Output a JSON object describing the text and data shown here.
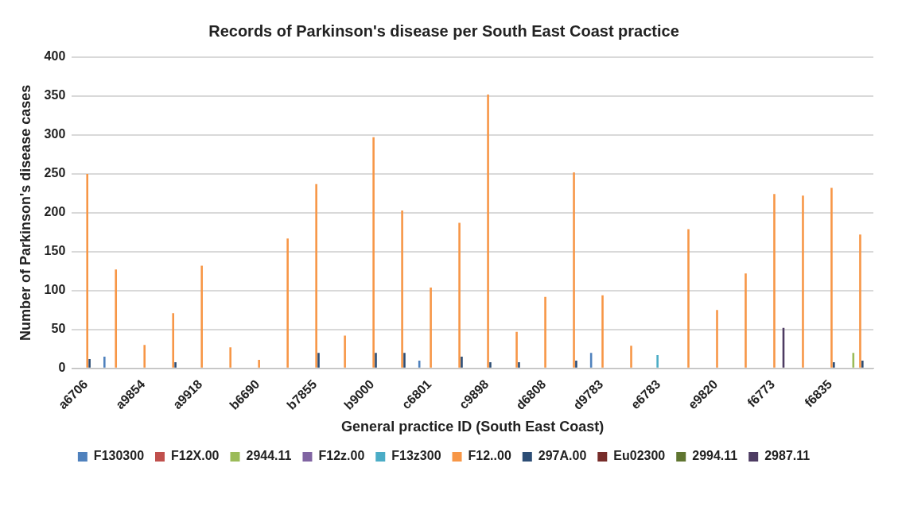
{
  "chart_data": {
    "type": "bar",
    "title": "Records of Parkinson's disease per South East Coast practice",
    "xlabel": "General practice ID (South East Coast)",
    "ylabel": "Number of Parkinson's disease cases",
    "categories": [
      "a6706",
      null,
      "a9854",
      null,
      "a9918",
      null,
      "b6690",
      null,
      "b7855",
      null,
      "b9000",
      null,
      "c6801",
      null,
      "c9898",
      null,
      "d6808",
      null,
      "d9783",
      null,
      "e6783",
      null,
      "e9820",
      null,
      "f6773",
      null,
      "f6835",
      null
    ],
    "series": [
      {
        "name": "F130300",
        "color": "#4f81bd",
        "values": [
          0,
          15,
          0,
          0,
          0,
          0,
          0,
          0,
          0,
          0,
          0,
          0,
          10,
          0,
          0,
          0,
          0,
          0,
          20,
          0,
          0,
          0,
          0,
          0,
          0,
          0,
          0,
          0
        ]
      },
      {
        "name": "F12X.00",
        "color": "#c0504d",
        "values": [
          0,
          0,
          0,
          0,
          0,
          0,
          0,
          0,
          0,
          0,
          0,
          0,
          0,
          0,
          0,
          0,
          0,
          0,
          0,
          0,
          0,
          0,
          0,
          0,
          0,
          0,
          0,
          0
        ]
      },
      {
        "name": "2944.11",
        "color": "#9bbb59",
        "values": [
          0,
          0,
          0,
          0,
          0,
          0,
          0,
          0,
          0,
          0,
          0,
          0,
          0,
          0,
          0,
          0,
          0,
          0,
          0,
          0,
          0,
          0,
          0,
          0,
          0,
          0,
          0,
          20
        ]
      },
      {
        "name": "F12z.00",
        "color": "#8064a2",
        "values": [
          0,
          0,
          0,
          0,
          0,
          0,
          0,
          0,
          0,
          0,
          0,
          0,
          0,
          0,
          0,
          0,
          0,
          0,
          0,
          0,
          0,
          0,
          0,
          0,
          0,
          0,
          0,
          0
        ]
      },
      {
        "name": "F13z300",
        "color": "#4bacc6",
        "values": [
          0,
          0,
          0,
          0,
          0,
          0,
          0,
          0,
          0,
          0,
          0,
          0,
          0,
          0,
          0,
          0,
          0,
          0,
          0,
          0,
          17,
          0,
          0,
          0,
          0,
          0,
          0,
          0
        ]
      },
      {
        "name": "F12..00",
        "color": "#f79646",
        "values": [
          250,
          127,
          30,
          71,
          132,
          27,
          11,
          167,
          237,
          42,
          297,
          203,
          104,
          187,
          352,
          47,
          92,
          252,
          94,
          29,
          0,
          179,
          75,
          122,
          224,
          222,
          232,
          172
        ]
      },
      {
        "name": "297A.00",
        "color": "#2c4d75",
        "values": [
          12,
          0,
          0,
          8,
          0,
          0,
          0,
          0,
          20,
          0,
          20,
          20,
          0,
          15,
          8,
          8,
          0,
          10,
          0,
          0,
          0,
          0,
          0,
          0,
          0,
          0,
          8,
          10
        ]
      },
      {
        "name": "Eu02300",
        "color": "#772c2a",
        "values": [
          0,
          0,
          0,
          0,
          0,
          0,
          0,
          0,
          0,
          0,
          0,
          0,
          0,
          0,
          0,
          0,
          0,
          0,
          0,
          0,
          0,
          0,
          0,
          0,
          0,
          0,
          0,
          0
        ]
      },
      {
        "name": "2994.11",
        "color": "#5f7530",
        "values": [
          0,
          0,
          0,
          0,
          0,
          0,
          0,
          0,
          0,
          0,
          0,
          0,
          0,
          0,
          0,
          0,
          0,
          0,
          0,
          0,
          0,
          0,
          0,
          0,
          0,
          0,
          0,
          0
        ]
      },
      {
        "name": "2987.11",
        "color": "#4d3b62",
        "values": [
          0,
          0,
          0,
          0,
          0,
          0,
          0,
          0,
          0,
          0,
          0,
          0,
          0,
          0,
          0,
          0,
          0,
          0,
          0,
          0,
          0,
          0,
          0,
          0,
          52,
          0,
          0,
          0
        ]
      }
    ],
    "ylim": [
      0,
      400
    ],
    "yticks": [
      0,
      50,
      100,
      150,
      200,
      250,
      300,
      350,
      400
    ],
    "grid": "y",
    "legend": "bottom"
  }
}
